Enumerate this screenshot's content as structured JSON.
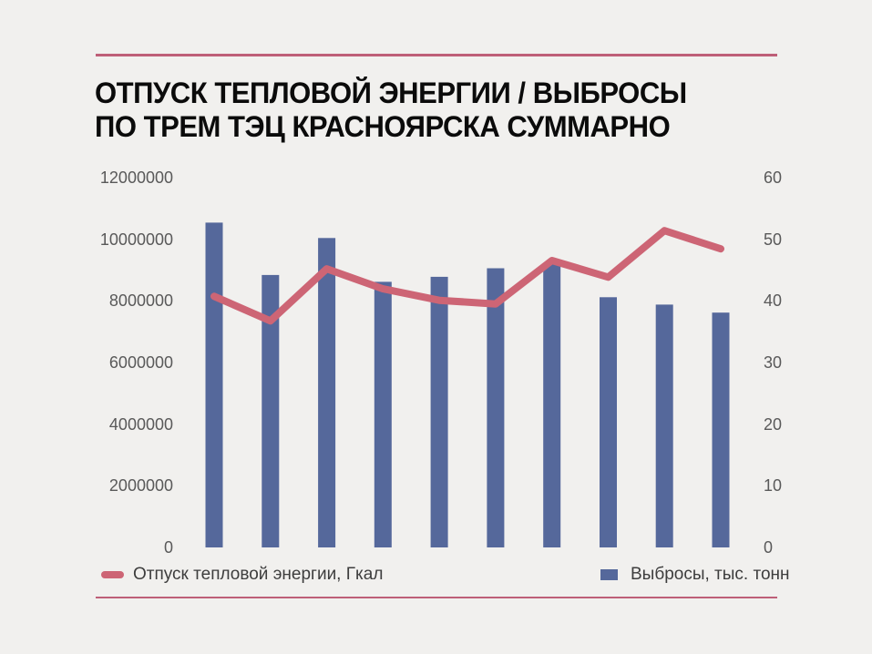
{
  "title": "ОТПУСК ТЕПЛОВОЙ ЭНЕРГИИ / ВЫБРОСЫ\nПО ТРЕМ ТЭЦ КРАСНОЯРСКА СУММАРНО",
  "colors": {
    "background": "#F1F0EE",
    "accent_rule": "#BE5F78",
    "title_text": "#0B0B0B",
    "tick_text": "#595959",
    "legend_text": "#3D3D3D",
    "bar_fill": "#55689B",
    "line_stroke": "#CD6575"
  },
  "chart_data": {
    "type": "combo",
    "title": "ОТПУСК ТЕПЛОВОЙ ЭНЕРГИИ / ВЫБРОСЫ ПО ТРЕМ ТЭЦ КРАСНОЯРСКА СУММАРНО",
    "n_points": 10,
    "x_tick_labels_visible": false,
    "grid": false,
    "legend_position": "bottom",
    "left_axis": {
      "range": [
        0,
        12000000
      ],
      "ticks": [
        0,
        2000000,
        4000000,
        6000000,
        8000000,
        10000000,
        12000000
      ]
    },
    "right_axis": {
      "range": [
        0,
        60
      ],
      "ticks": [
        0,
        10,
        20,
        30,
        40,
        50,
        60
      ]
    },
    "series": [
      {
        "name": "Отпуск тепловой энергии, Гкал",
        "type": "line",
        "axis": "left",
        "unit": "Гкал",
        "color": "#CD6575",
        "values": [
          8150000,
          7350000,
          9040000,
          8390000,
          8020000,
          7900000,
          9310000,
          8770000,
          10280000,
          9690000
        ]
      },
      {
        "name": "Выбросы, тыс. тонн",
        "type": "bar",
        "axis": "right",
        "unit": "тыс. тонн",
        "color": "#55689B",
        "values": [
          52.7,
          44.2,
          50.2,
          43.1,
          43.9,
          45.3,
          45.9,
          40.6,
          39.4,
          38.1
        ]
      }
    ]
  }
}
